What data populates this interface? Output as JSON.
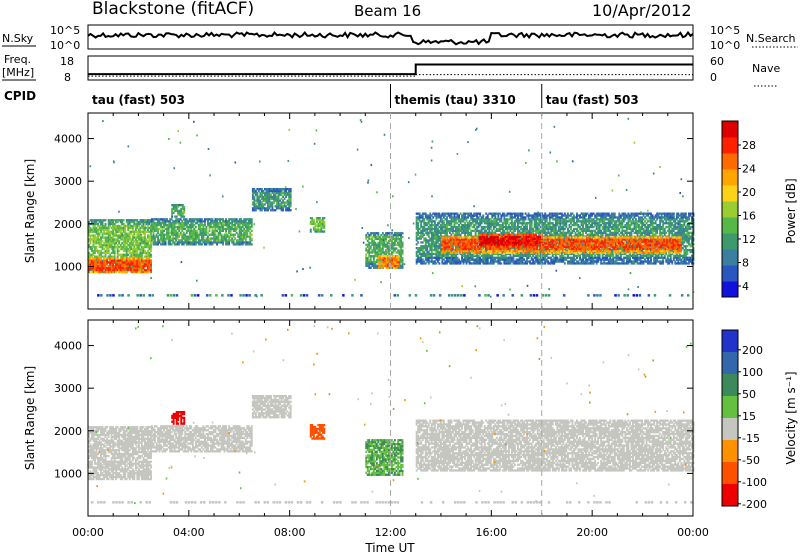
{
  "header": {
    "station": "Blackstone (fitACF)",
    "beam": "Beam 16",
    "date": "10/Apr/2012"
  },
  "noise_panel": {
    "left_label": "N.Sky",
    "left_ticks": [
      "10^5",
      "10^0"
    ],
    "right_ticks": [
      "10^5",
      "10^0"
    ],
    "right_label": "N.Search"
  },
  "freq_panel": {
    "left_label_top": "Freq.",
    "left_label_bottom": "[MHz]",
    "left_ticks": [
      "18",
      "8"
    ],
    "right_ticks": [
      "60",
      "0"
    ],
    "right_label": "Nave",
    "freq_step": {
      "times_h": [
        0,
        13.0,
        24
      ],
      "values_mhz": [
        10.2,
        10.2,
        14.6
      ]
    },
    "nave_series": {
      "times_h": [
        0,
        13.0,
        24
      ],
      "values": [
        8,
        8,
        12
      ]
    }
  },
  "cpid": {
    "label": "CPID",
    "segments": [
      {
        "start_h": 0,
        "end_h": 12,
        "name": "tau (fast) 503"
      },
      {
        "start_h": 12,
        "end_h": 18,
        "name": "themis (tau) 3310"
      },
      {
        "start_h": 18,
        "end_h": 24,
        "name": "tau (fast) 503"
      }
    ]
  },
  "chart_data": [
    {
      "type": "heatmap",
      "name": "power",
      "ylabel": "Slant Range [km]",
      "xlim": [
        0,
        24
      ],
      "ylim": [
        0,
        4600
      ],
      "yticks": [
        1000,
        2000,
        3000,
        4000
      ],
      "colorbar": {
        "label": "Power [dB]",
        "ticks": [
          "28",
          "24",
          "20",
          "16",
          "12",
          "8",
          "4"
        ],
        "range": [
          0,
          32
        ],
        "colors": [
          "#1111dd",
          "#2a56c0",
          "#3a7fa0",
          "#3d9a6c",
          "#55b848",
          "#9acd32",
          "#ffd21a",
          "#ffa500",
          "#ff6a00",
          "#ff2000",
          "#dd0000"
        ]
      },
      "regions": [
        {
          "t0": 0.0,
          "t1": 2.5,
          "r0": 850,
          "r1": 2100,
          "p": 14
        },
        {
          "t0": 0.0,
          "t1": 2.5,
          "r0": 850,
          "r1": 1200,
          "p": 26
        },
        {
          "t0": 2.5,
          "t1": 6.5,
          "r0": 1500,
          "r1": 2100,
          "p": 12
        },
        {
          "t0": 3.3,
          "t1": 3.8,
          "r0": 2150,
          "r1": 2450,
          "p": 12
        },
        {
          "t0": 6.5,
          "t1": 8.0,
          "r0": 2300,
          "r1": 2800,
          "p": 10
        },
        {
          "t0": 8.8,
          "t1": 9.4,
          "r0": 1800,
          "r1": 2150,
          "p": 14
        },
        {
          "t0": 11.0,
          "t1": 12.5,
          "r0": 950,
          "r1": 1800,
          "p": 12
        },
        {
          "t0": 11.5,
          "t1": 12.3,
          "r0": 950,
          "r1": 1250,
          "p": 24
        },
        {
          "t0": 13.0,
          "t1": 24.0,
          "r0": 1050,
          "r1": 2250,
          "p": 10
        },
        {
          "t0": 14.0,
          "t1": 23.5,
          "r0": 1300,
          "r1": 1700,
          "p": 26
        },
        {
          "t0": 15.5,
          "t1": 18.0,
          "r0": 1450,
          "r1": 1750,
          "p": 30
        }
      ]
    },
    {
      "type": "heatmap",
      "name": "velocity",
      "ylabel": "Slant Range [km]",
      "xlabel": "Time UT",
      "xlim": [
        0,
        24
      ],
      "ylim": [
        0,
        4600
      ],
      "yticks": [
        1000,
        2000,
        3000,
        4000
      ],
      "xticks": [
        "00:00",
        "04:00",
        "08:00",
        "12:00",
        "16:00",
        "20:00",
        "00:00"
      ],
      "colorbar": {
        "label": "Velocity [m s⁻¹]",
        "ticks": [
          "200",
          "100",
          "50",
          "15",
          "-15",
          "-50",
          "-100",
          "-200"
        ],
        "colors": [
          "#2233cc",
          "#3366aa",
          "#3c8a5a",
          "#66c040",
          "#c6c6c0",
          "#ff9000",
          "#ff5000",
          "#ee0000"
        ]
      },
      "regions": [
        {
          "t0": 0.0,
          "t1": 2.5,
          "r0": 850,
          "r1": 2100,
          "v": 0
        },
        {
          "t0": 2.5,
          "t1": 6.5,
          "r0": 1500,
          "r1": 2100,
          "v": 0
        },
        {
          "t0": 3.3,
          "t1": 3.8,
          "r0": 2150,
          "r1": 2450,
          "v": -150
        },
        {
          "t0": 6.5,
          "t1": 8.0,
          "r0": 2300,
          "r1": 2800,
          "v": 0
        },
        {
          "t0": 8.8,
          "t1": 9.4,
          "r0": 1800,
          "r1": 2150,
          "v": -80
        },
        {
          "t0": 11.0,
          "t1": 12.5,
          "r0": 950,
          "r1": 1800,
          "v": 30
        },
        {
          "t0": 13.0,
          "t1": 24.0,
          "r0": 1050,
          "r1": 2250,
          "v": 0
        }
      ]
    }
  ]
}
